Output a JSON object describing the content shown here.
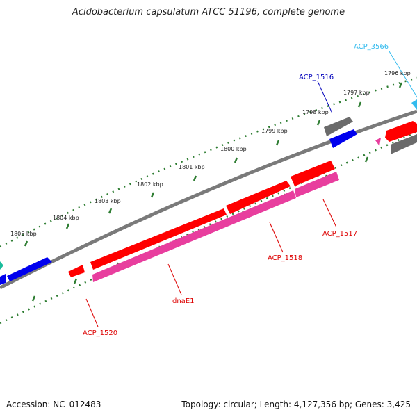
{
  "title": "Acidobacterium capsulatum ATCC 51196, complete genome",
  "footer": {
    "accession": "Accession: NC_012483",
    "topology": "Topology: circular; Length: 4,127,356 bp; Genes: 3,425"
  },
  "ticks": [
    "1796 kbp",
    "1797 kbp",
    "1798 kbp",
    "1799 kbp",
    "1800 kbp",
    "1801 kbp",
    "1802 kbp",
    "1803 kbp",
    "1804 kbp",
    "1805 kbp"
  ],
  "genes": [
    {
      "name": "ACP_3566",
      "color": "#33bbee"
    },
    {
      "name": "ACP_1516",
      "color": "#0000bb"
    },
    {
      "name": "ACP_1517",
      "color": "#dd0000"
    },
    {
      "name": "ACP_1518",
      "color": "#dd0000"
    },
    {
      "name": "dnaE1",
      "color": "#dd0000"
    },
    {
      "name": "ACP_1520",
      "color": "#dd0000"
    }
  ],
  "colors": {
    "backbone": "#808080",
    "tick": "#2e7d32",
    "cds": "#ff0000",
    "rna": "#e83e9e",
    "other": "#6b6b6b",
    "blue_gene": "#0000ee"
  }
}
